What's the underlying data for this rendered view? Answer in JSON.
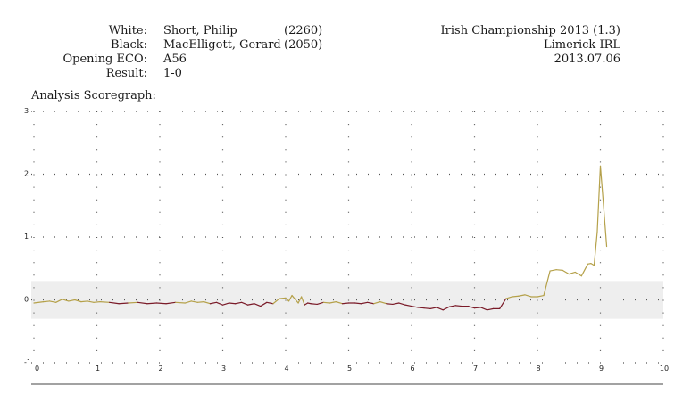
{
  "game": {
    "white_label": "White:",
    "white_name": "Short, Philip",
    "white_rating": "(2260)",
    "black_label": "Black:",
    "black_name": "MacElligott, Gerard",
    "black_rating": "(2050)",
    "eco_label": "Opening ECO:",
    "eco": "A56",
    "result_label": "Result:",
    "result": "1-0",
    "event": "Irish Championship 2013 (1.3)",
    "site": "Limerick IRL",
    "date": "2013.07.06"
  },
  "section_title": "Analysis Scoregraph:",
  "colors": {
    "white_adv": "#b5a14a",
    "black_adv": "#7a1a28",
    "band": "#eeeeee"
  },
  "chart_data": {
    "type": "line",
    "title": "",
    "xlabel": "",
    "ylabel": "",
    "xlim": [
      0,
      10
    ],
    "ylim": [
      -1,
      3
    ],
    "band": [
      -0.3,
      0.3
    ],
    "grid": "dotted",
    "xticks": [
      "0",
      "1",
      "2",
      "3",
      "4",
      "5",
      "6",
      "7",
      "8",
      "9",
      "10"
    ],
    "yticks": [
      "-1",
      "0",
      "1",
      "2",
      "3"
    ],
    "series": [
      {
        "x": [
          0,
          0.15,
          0.25,
          0.35,
          0.45,
          0.55,
          0.65,
          0.75,
          0.85,
          0.95,
          1.05,
          1.2,
          1.35,
          1.5,
          1.65,
          1.8,
          1.95,
          2.1,
          2.25,
          2.4,
          2.5,
          2.6,
          2.7,
          2.8,
          2.9,
          3.0,
          3.1,
          3.2,
          3.3,
          3.4,
          3.5,
          3.6,
          3.7,
          3.8,
          3.9,
          4.0,
          4.05,
          4.1,
          4.2,
          4.25,
          4.3,
          4.35,
          4.4,
          4.5,
          4.6,
          4.7,
          4.8,
          4.9,
          5.0,
          5.1,
          5.2,
          5.3,
          5.4,
          5.5,
          5.6,
          5.7,
          5.8,
          5.9,
          6.0,
          6.1,
          6.2,
          6.3,
          6.4,
          6.5,
          6.6,
          6.7,
          6.8,
          6.9,
          7.0,
          7.1,
          7.2,
          7.3,
          7.4,
          7.5,
          7.6,
          7.7,
          7.8,
          7.9,
          8.0,
          8.1,
          8.2,
          8.3,
          8.4,
          8.5,
          8.6,
          8.7,
          8.8,
          8.85,
          8.9,
          8.95,
          9.0,
          9.05,
          9.1
        ],
        "y": [
          -0.05,
          -0.03,
          -0.02,
          -0.04,
          0.01,
          -0.02,
          0.0,
          -0.03,
          -0.02,
          -0.04,
          -0.03,
          -0.04,
          -0.06,
          -0.05,
          -0.04,
          -0.06,
          -0.05,
          -0.06,
          -0.04,
          -0.05,
          -0.02,
          -0.04,
          -0.03,
          -0.06,
          -0.04,
          -0.08,
          -0.05,
          -0.06,
          -0.04,
          -0.08,
          -0.06,
          -0.1,
          -0.04,
          -0.06,
          0.02,
          0.03,
          -0.02,
          0.07,
          -0.05,
          0.05,
          -0.08,
          -0.05,
          -0.06,
          -0.07,
          -0.04,
          -0.05,
          -0.03,
          -0.06,
          -0.05,
          -0.05,
          -0.06,
          -0.04,
          -0.06,
          -0.03,
          -0.06,
          -0.07,
          -0.05,
          -0.08,
          -0.1,
          -0.12,
          -0.13,
          -0.14,
          -0.12,
          -0.16,
          -0.11,
          -0.09,
          -0.1,
          -0.1,
          -0.13,
          -0.12,
          -0.16,
          -0.14,
          -0.14,
          0.02,
          0.05,
          0.06,
          0.08,
          0.05,
          0.05,
          0.07,
          0.46,
          0.48,
          0.47,
          0.41,
          0.44,
          0.38,
          0.57,
          0.58,
          0.55,
          1.08,
          2.13,
          1.5,
          0.85
        ]
      }
    ]
  }
}
